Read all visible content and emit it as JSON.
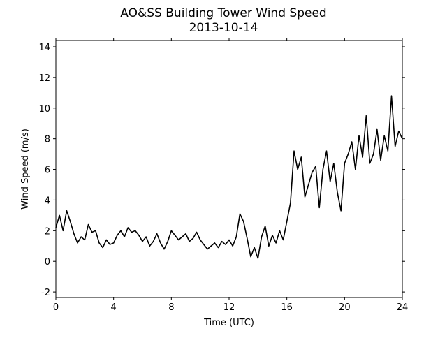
{
  "chart_data": {
    "type": "line",
    "title": "AO&SS Building Tower Wind Speed",
    "subtitle": "2013-10-14",
    "x_label": "Time (UTC)",
    "y_label": "Wind Speed (m/s)",
    "x": [
      0,
      0.25,
      0.5,
      0.75,
      1,
      1.25,
      1.5,
      1.75,
      2,
      2.25,
      2.5,
      2.75,
      3,
      3.25,
      3.5,
      3.75,
      4,
      4.25,
      4.5,
      4.75,
      5,
      5.25,
      5.5,
      5.75,
      6,
      6.25,
      6.5,
      6.75,
      7,
      7.25,
      7.5,
      7.75,
      8,
      8.25,
      8.5,
      8.75,
      9,
      9.25,
      9.5,
      9.75,
      10,
      10.25,
      10.5,
      10.75,
      11,
      11.25,
      11.5,
      11.75,
      12,
      12.25,
      12.5,
      12.75,
      13,
      13.25,
      13.5,
      13.75,
      14,
      14.25,
      14.5,
      14.75,
      15,
      15.25,
      15.5,
      15.75,
      16,
      16.25,
      16.5,
      16.75,
      17,
      17.25,
      17.5,
      17.75,
      18,
      18.25,
      18.5,
      18.75,
      19,
      19.25,
      19.5,
      19.75,
      20,
      20.25,
      20.5,
      20.75,
      21,
      21.25,
      21.5,
      21.75,
      22,
      22.25,
      22.5,
      22.75,
      23,
      23.25,
      23.5,
      23.75,
      24
    ],
    "series": [
      {
        "color": "#000000",
        "values": [
          2.2,
          3.0,
          2.0,
          3.3,
          2.6,
          1.8,
          1.2,
          1.6,
          1.4,
          2.4,
          1.9,
          2.0,
          1.2,
          0.9,
          1.4,
          1.1,
          1.2,
          1.7,
          2.0,
          1.6,
          2.2,
          1.9,
          2.0,
          1.7,
          1.3,
          1.6,
          1.0,
          1.3,
          1.8,
          1.2,
          0.8,
          1.3,
          2.0,
          1.7,
          1.4,
          1.6,
          1.8,
          1.3,
          1.5,
          1.9,
          1.4,
          1.1,
          0.8,
          1.0,
          1.2,
          0.9,
          1.3,
          1.1,
          1.4,
          1.0,
          1.6,
          3.1,
          2.6,
          1.5,
          0.3,
          0.9,
          0.2,
          1.6,
          2.3,
          1.0,
          1.7,
          1.2,
          2.0,
          1.4,
          2.6,
          3.8,
          7.2,
          6.0,
          6.8,
          4.2,
          5.0,
          5.8,
          6.2,
          3.5,
          6.0,
          7.2,
          5.2,
          6.4,
          4.5,
          3.3,
          6.4,
          7.0,
          7.8,
          6.0,
          8.2,
          6.8,
          9.5,
          6.4,
          7.0,
          8.6,
          6.6,
          8.2,
          7.2,
          10.8,
          7.5,
          8.5,
          8.0
        ]
      }
    ],
    "xlim": [
      0,
      24
    ],
    "xticks": [
      0,
      4,
      8,
      12,
      16,
      20,
      24
    ],
    "ylim": [
      -2.36,
      14.41
    ],
    "yticks": [
      -2,
      0,
      2,
      4,
      6,
      8,
      10,
      12,
      14
    ]
  }
}
